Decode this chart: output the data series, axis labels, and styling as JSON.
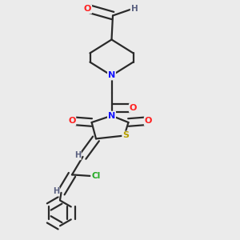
{
  "bg_color": "#ebebeb",
  "atom_colors": {
    "C": "#1a1a1a",
    "N": "#1414ff",
    "O": "#ff2020",
    "S": "#b8a000",
    "Cl": "#22aa22",
    "H": "#5a6080"
  },
  "bond_color": "#2a2a2a",
  "bond_width": 1.6,
  "dbo": 0.016
}
